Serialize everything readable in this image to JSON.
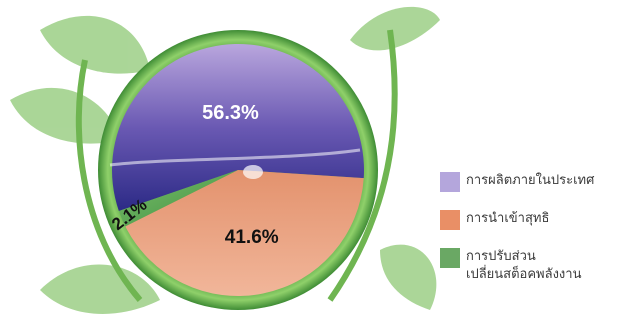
{
  "chart_data": {
    "type": "pie",
    "title": "",
    "slices": [
      {
        "label": "การผลิตภายในประเทศ",
        "value": 56.3,
        "display": "56.3%",
        "color": "#9f8fcc"
      },
      {
        "label": "การนำเข้าสุทธิ",
        "value": 41.6,
        "display": "41.6%",
        "color": "#e8926c"
      },
      {
        "label": "การปรับส่วน\nเปลี่ยนสต็อคพลังงาน",
        "value": 2.1,
        "display": "2.1%",
        "color": "#5fa35e"
      }
    ],
    "legend_position": "right"
  },
  "legend": {
    "items": [
      {
        "label": "การผลิตภายในประเทศ",
        "color": "#b4a6dc"
      },
      {
        "label": "การนำเข้าสุทธิ",
        "color": "#e98f66"
      },
      {
        "label_line1": "การปรับส่วน",
        "label_line2": "เปลี่ยนสต็อคพลังงาน",
        "color": "#6aa864"
      }
    ]
  }
}
